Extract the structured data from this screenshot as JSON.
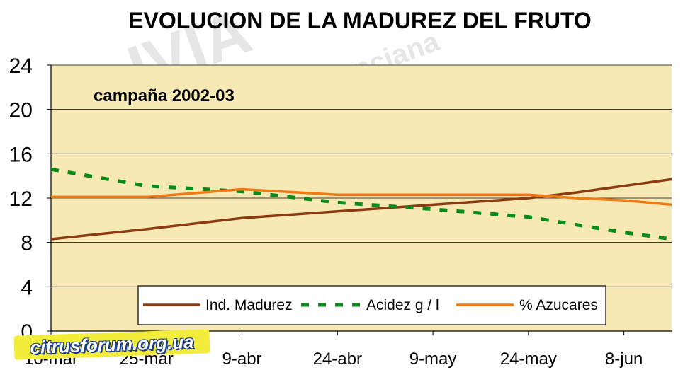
{
  "chart_data": {
    "type": "line",
    "title": "EVOLUCION DE LA MADUREZ DEL FRUTO",
    "subtitle": "campaña 2002-03",
    "xlabel": "",
    "ylabel": "",
    "ylim": [
      0,
      24
    ],
    "yticks": [
      0,
      4,
      8,
      12,
      16,
      20,
      24
    ],
    "xtick_labels": [
      "10-mar",
      "25-mar",
      "9-abr",
      "24-abr",
      "9-may",
      "24-may",
      "8-jun"
    ],
    "x_range": [
      0,
      13
    ],
    "grid": true,
    "legend_position": "bottom-inside",
    "plot_background": "#f7e9b3",
    "series": [
      {
        "name": "Ind. Madurez",
        "color": "#8b3a12",
        "style": "solid",
        "x": [
          0,
          2,
          4,
          6,
          8,
          10,
          11,
          12,
          13
        ],
        "y": [
          8.3,
          9.2,
          10.2,
          10.8,
          11.4,
          12.0,
          12.5,
          13.1,
          13.7
        ]
      },
      {
        "name": "Acidez g / l",
        "color": "#0b8a1c",
        "style": "dashed",
        "x": [
          0,
          2,
          4,
          6,
          8,
          10,
          11,
          12,
          13
        ],
        "y": [
          14.6,
          13.1,
          12.6,
          11.6,
          11.0,
          10.3,
          9.6,
          8.9,
          8.3
        ]
      },
      {
        "name": "% Azucares",
        "color": "#f07a16",
        "style": "solid",
        "x": [
          0,
          2,
          4,
          6,
          8,
          10,
          11,
          12,
          13
        ],
        "y": [
          12.1,
          12.1,
          12.8,
          12.3,
          12.3,
          12.3,
          12.0,
          11.8,
          11.4
        ]
      }
    ]
  },
  "watermark": {
    "site_label": "citrusforum.org.ua"
  }
}
